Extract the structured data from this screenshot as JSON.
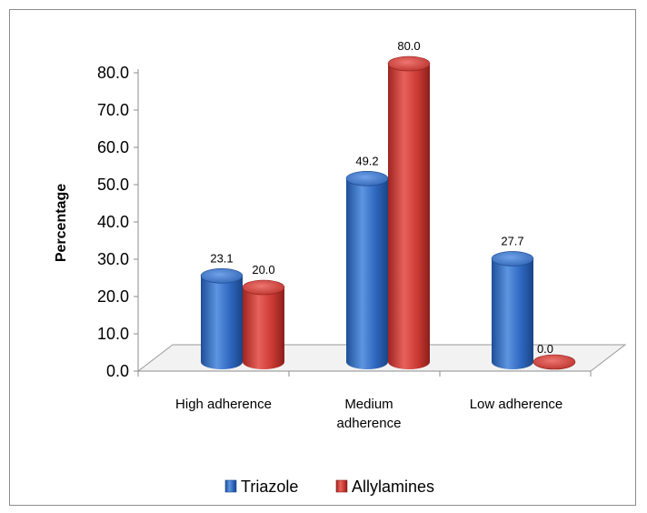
{
  "chart_data": {
    "type": "bar",
    "title": "",
    "ylabel": "Percentage",
    "xlabel": "",
    "categories": [
      "High adherence",
      "Medium adherence",
      "Low adherence"
    ],
    "category_lines": [
      [
        "High adherence"
      ],
      [
        "Medium",
        "adherence"
      ],
      [
        "Low adherence"
      ]
    ],
    "yticks": [
      "0.0",
      "10.0",
      "20.0",
      "30.0",
      "40.0",
      "50.0",
      "60.0",
      "70.0",
      "80.0"
    ],
    "ylim": [
      0,
      80
    ],
    "legend_position": "bottom",
    "grid": false,
    "series": [
      {
        "name": "Triazole",
        "values": [
          23.1,
          49.2,
          27.7
        ],
        "labels": [
          "23.1",
          "49.2",
          "27.7"
        ],
        "color": "#2e68c0"
      },
      {
        "name": "Allylamines",
        "values": [
          20.0,
          80.0,
          0.0
        ],
        "labels": [
          "20.0",
          "80.0",
          "0.0"
        ],
        "color": "#cc3a34"
      }
    ]
  }
}
